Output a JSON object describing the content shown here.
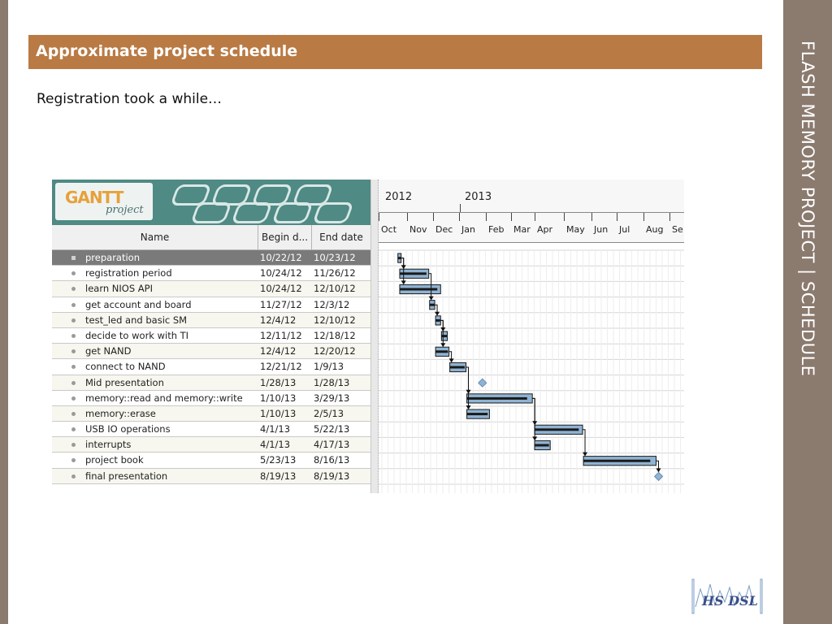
{
  "slide": {
    "header": "Approximate project schedule",
    "subtitle": "Registration took a while…",
    "side_title": "FLASH MEMORY PROJECT    |    SCHEDULE",
    "logo_text": "HS DSL"
  },
  "gantt": {
    "logo": {
      "main": "GANTT",
      "sub": "project"
    },
    "columns": {
      "name": "Name",
      "begin": "Begin d...",
      "end": "End date"
    },
    "years": [
      "2012",
      "2013"
    ],
    "months": [
      "Oct",
      "Nov",
      "Dec",
      "Jan",
      "Feb",
      "Mar",
      "Apr",
      "May",
      "Jun",
      "Jul",
      "Aug",
      "Se"
    ],
    "tasks": [
      {
        "name": "preparation",
        "begin": "10/22/12",
        "end": "10/23/12",
        "selected": true
      },
      {
        "name": "registration period",
        "begin": "10/24/12",
        "end": "11/26/12"
      },
      {
        "name": "learn NIOS API",
        "begin": "10/24/12",
        "end": "12/10/12"
      },
      {
        "name": "get account and board",
        "begin": "11/27/12",
        "end": "12/3/12"
      },
      {
        "name": "test_led and basic SM",
        "begin": "12/4/12",
        "end": "12/10/12"
      },
      {
        "name": "decide to work with TI",
        "begin": "12/11/12",
        "end": "12/18/12"
      },
      {
        "name": "get NAND",
        "begin": "12/4/12",
        "end": "12/20/12"
      },
      {
        "name": "connect to NAND",
        "begin": "12/21/12",
        "end": "1/9/13"
      },
      {
        "name": "Mid presentation",
        "begin": "1/28/13",
        "end": "1/28/13",
        "milestone": true
      },
      {
        "name": "memory::read and memory::write",
        "begin": "1/10/13",
        "end": "3/29/13"
      },
      {
        "name": "memory::erase",
        "begin": "1/10/13",
        "end": "2/5/13"
      },
      {
        "name": "USB IO operations",
        "begin": "4/1/13",
        "end": "5/22/13"
      },
      {
        "name": "interrupts",
        "begin": "4/1/13",
        "end": "4/17/13"
      },
      {
        "name": "project book",
        "begin": "5/23/13",
        "end": "8/16/13"
      },
      {
        "name": "final presentation",
        "begin": "8/19/13",
        "end": "8/19/13",
        "milestone": true
      }
    ],
    "dependencies": [
      [
        0,
        1
      ],
      [
        0,
        2
      ],
      [
        1,
        3
      ],
      [
        3,
        4
      ],
      [
        4,
        5
      ],
      [
        4,
        6
      ],
      [
        6,
        7
      ],
      [
        7,
        9
      ],
      [
        7,
        10
      ],
      [
        9,
        11
      ],
      [
        9,
        12
      ],
      [
        11,
        13
      ],
      [
        13,
        14
      ]
    ]
  },
  "colors": {
    "header_bar": "#b97a44",
    "side_band": "#8b7a6e",
    "gantt_bar": "#8fb3d3",
    "milestone": "#8fb3d3"
  }
}
